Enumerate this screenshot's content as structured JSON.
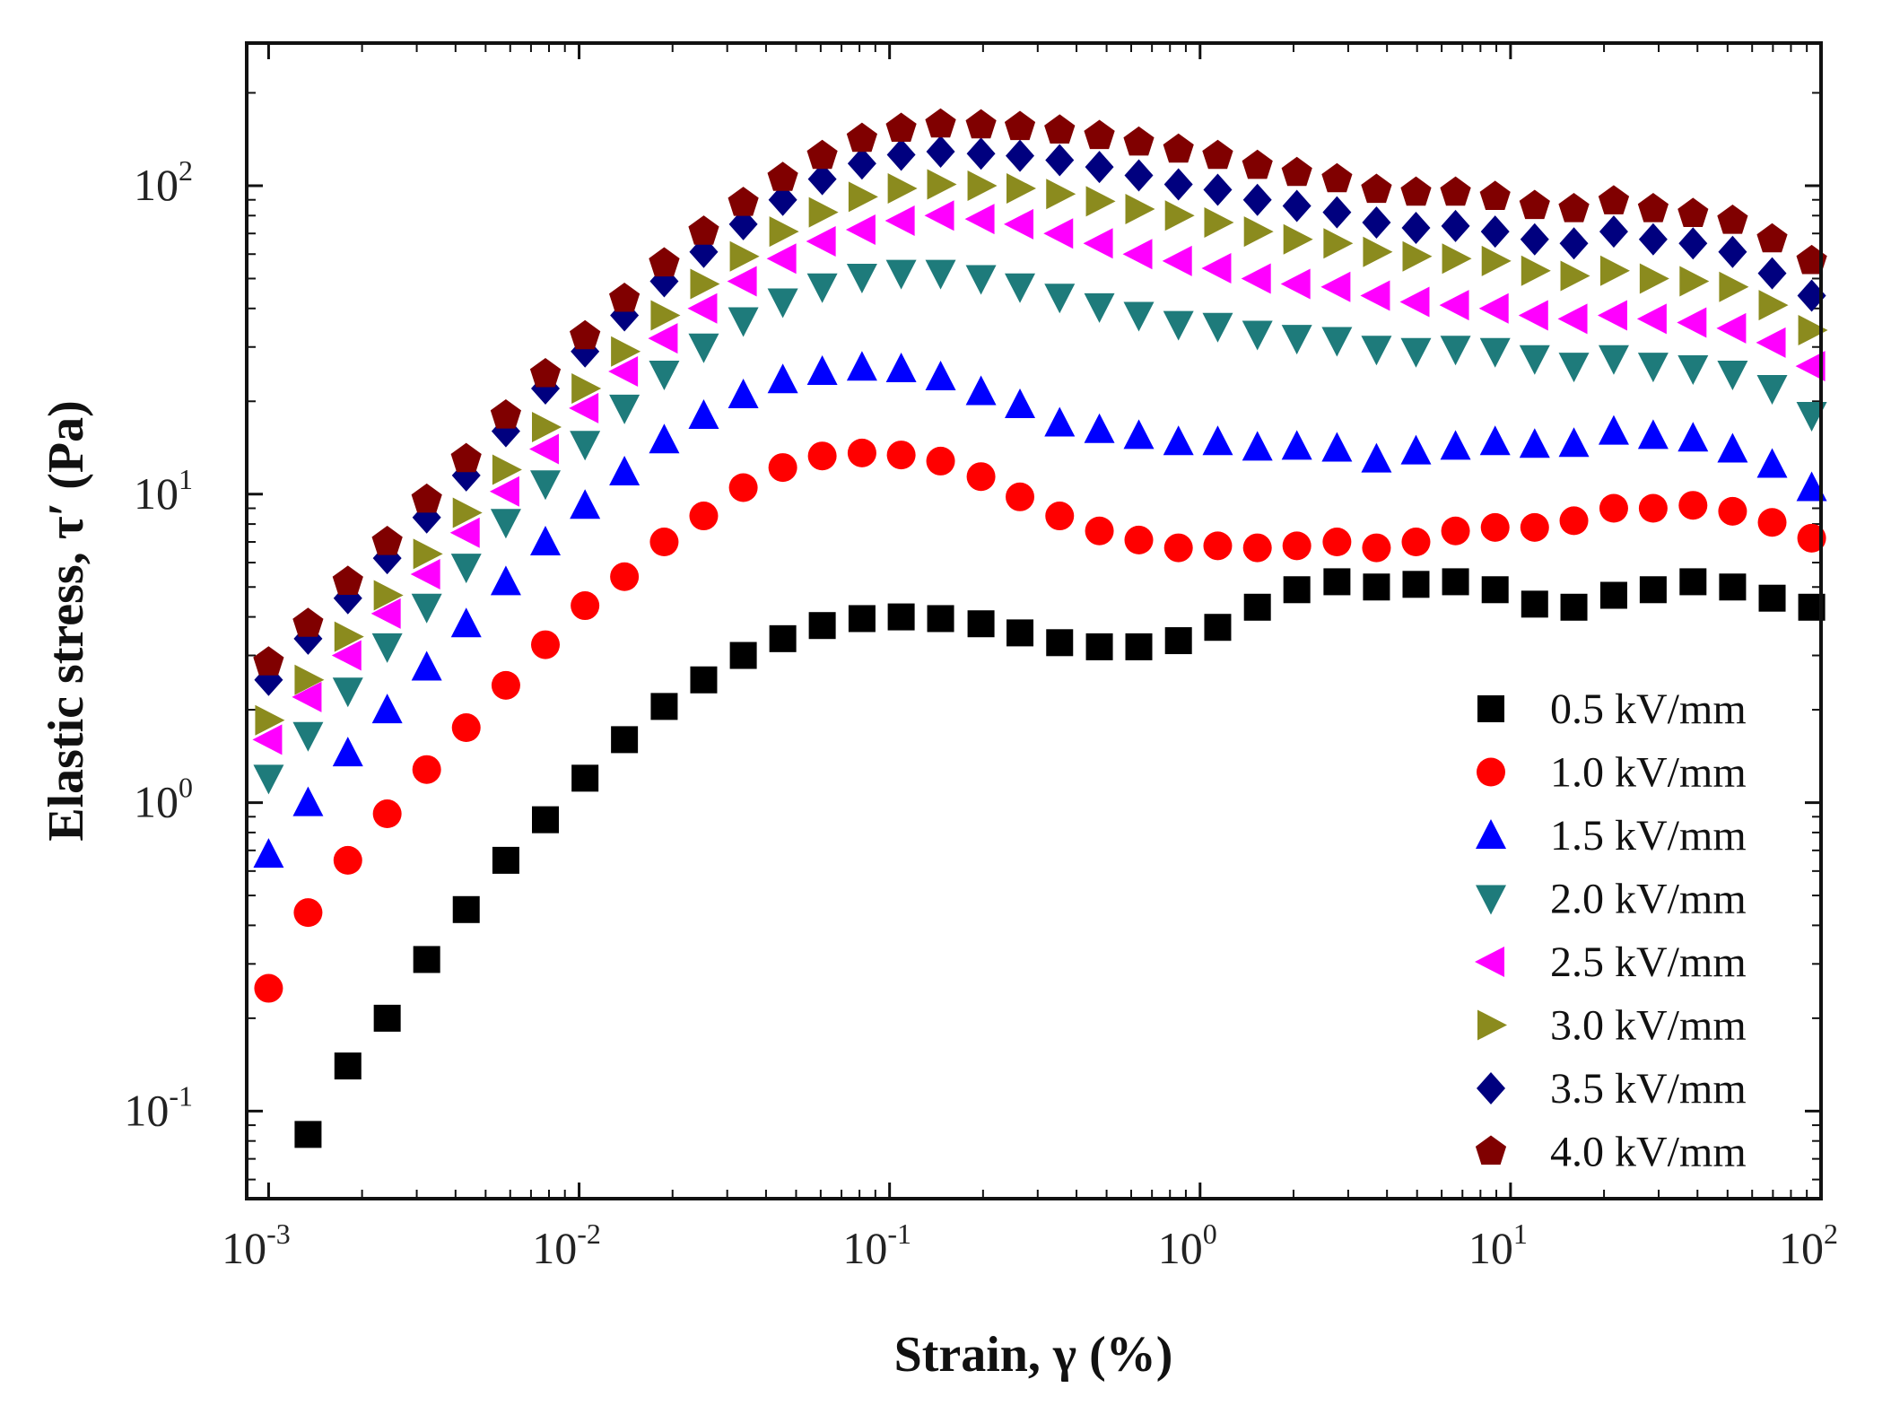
{
  "chart_data": {
    "type": "scatter",
    "title": "",
    "xlabel": "Strain, γ (%)",
    "ylabel": "Elastic stress, τ′ (Pa)",
    "xscale": "log",
    "yscale": "log",
    "xlim": [
      0.00085,
      100
    ],
    "ylim": [
      0.052,
      290
    ],
    "x_ticks": [
      {
        "value": 0.001,
        "base": "10",
        "exp": "-3"
      },
      {
        "value": 0.01,
        "base": "10",
        "exp": "-2"
      },
      {
        "value": 0.1,
        "base": "10",
        "exp": "-1"
      },
      {
        "value": 1,
        "base": "10",
        "exp": "0"
      },
      {
        "value": 10,
        "base": "10",
        "exp": "1"
      },
      {
        "value": 100,
        "base": "10",
        "exp": "2"
      }
    ],
    "y_ticks": [
      {
        "value": 0.1,
        "base": "10",
        "exp": "-1"
      },
      {
        "value": 1,
        "base": "10",
        "exp": "0"
      },
      {
        "value": 10,
        "base": "10",
        "exp": "1"
      },
      {
        "value": 100,
        "base": "10",
        "exp": "2"
      }
    ],
    "legend_position": "bottom-right",
    "x": [
      0.001,
      0.00134,
      0.0018,
      0.00241,
      0.00323,
      0.00433,
      0.00581,
      0.00779,
      0.01045,
      0.014,
      0.0188,
      0.0252,
      0.0338,
      0.0453,
      0.0607,
      0.0815,
      0.109,
      0.146,
      0.197,
      0.263,
      0.353,
      0.474,
      0.635,
      0.852,
      1.14,
      1.53,
      2.05,
      2.76,
      3.7,
      4.96,
      6.65,
      8.92,
      11.96,
      16.0,
      21.5,
      28.8,
      38.7,
      51.9,
      69.6,
      93.3
    ],
    "series": [
      {
        "name": "0.5 kV/mm",
        "marker": "square",
        "color": "#000000",
        "values": [
          null,
          0.084,
          0.14,
          0.2,
          0.31,
          0.45,
          0.65,
          0.88,
          1.2,
          1.6,
          2.05,
          2.5,
          3.0,
          3.4,
          3.75,
          3.95,
          4.0,
          3.95,
          3.8,
          3.55,
          3.3,
          3.2,
          3.2,
          3.35,
          3.7,
          4.3,
          4.9,
          5.2,
          5.0,
          5.1,
          5.2,
          4.9,
          4.4,
          4.3,
          4.7,
          4.9,
          5.2,
          5.0,
          4.6,
          4.3
        ]
      },
      {
        "name": "1.0 kV/mm",
        "marker": "circle",
        "color": "#ff0000",
        "values": [
          0.25,
          0.44,
          0.65,
          0.92,
          1.28,
          1.75,
          2.4,
          3.25,
          4.35,
          5.4,
          7.0,
          8.5,
          10.5,
          12.2,
          13.3,
          13.6,
          13.4,
          12.8,
          11.4,
          9.8,
          8.5,
          7.6,
          7.1,
          6.7,
          6.8,
          6.7,
          6.8,
          7.0,
          6.7,
          7.0,
          7.6,
          7.8,
          7.8,
          8.2,
          9.0,
          9.0,
          9.2,
          8.8,
          8.1,
          7.2
        ]
      },
      {
        "name": "1.5 kV/mm",
        "marker": "triangle-up",
        "color": "#0000ff",
        "values": [
          0.68,
          1.0,
          1.45,
          2.0,
          2.75,
          3.8,
          5.2,
          7.0,
          9.2,
          11.8,
          15.0,
          18.0,
          21.0,
          23.5,
          25.0,
          25.8,
          25.5,
          24.0,
          21.5,
          19.5,
          17.0,
          16.2,
          15.5,
          14.8,
          14.8,
          14.2,
          14.3,
          14.1,
          13.0,
          13.8,
          14.3,
          14.8,
          14.5,
          14.6,
          16.0,
          15.5,
          15.2,
          14.0,
          12.5,
          10.5
        ]
      },
      {
        "name": "2.0 kV/mm",
        "marker": "triangle-down",
        "color": "#1e7b7b",
        "values": [
          1.2,
          1.65,
          2.3,
          3.2,
          4.3,
          5.8,
          8.1,
          10.8,
          14.5,
          19.0,
          24.5,
          30.0,
          36.5,
          42.0,
          47.0,
          50.5,
          52.0,
          52.0,
          50.0,
          47.0,
          43.5,
          40.5,
          38.0,
          35.5,
          35.0,
          33.0,
          32.0,
          31.5,
          29.5,
          29.0,
          29.5,
          29.0,
          27.5,
          26.0,
          27.5,
          26.0,
          25.5,
          24.5,
          22.0,
          18.0
        ]
      },
      {
        "name": "2.5 kV/mm",
        "marker": "triangle-left",
        "color": "#ff00ff",
        "values": [
          1.6,
          2.2,
          3.0,
          4.1,
          5.5,
          7.5,
          10.2,
          14.0,
          19.0,
          25.0,
          32.0,
          40.0,
          49.0,
          58.0,
          66.0,
          72.0,
          77.0,
          80.0,
          78.0,
          75.0,
          70.0,
          65.0,
          60.0,
          57.0,
          54.0,
          50.0,
          48.0,
          47.0,
          44.0,
          42.0,
          41.0,
          40.0,
          38.0,
          37.0,
          38.0,
          37.0,
          36.0,
          34.5,
          31.0,
          26.0
        ]
      },
      {
        "name": "3.0 kV/mm",
        "marker": "triangle-right",
        "color": "#8b8b1e",
        "values": [
          1.85,
          2.5,
          3.45,
          4.7,
          6.4,
          8.7,
          12.0,
          16.5,
          22.0,
          29.0,
          38.0,
          48.0,
          59.0,
          71.0,
          82.0,
          92.0,
          98.0,
          101.0,
          100.0,
          98.0,
          94.0,
          89.0,
          84.0,
          80.0,
          76.0,
          71.0,
          67.0,
          65.0,
          61.0,
          59.0,
          58.0,
          57.0,
          53.0,
          51.0,
          53.0,
          50.0,
          49.0,
          47.0,
          41.0,
          34.0
        ]
      },
      {
        "name": "3.5 kV/mm",
        "marker": "diamond",
        "color": "#00007f",
        "values": [
          2.5,
          3.4,
          4.6,
          6.2,
          8.4,
          11.5,
          16.0,
          22.0,
          29.0,
          38.0,
          49.0,
          61.0,
          75.0,
          90.0,
          105.0,
          118.0,
          126.0,
          129.0,
          127.0,
          125.0,
          121.0,
          115.0,
          108.0,
          101.0,
          97.0,
          90.0,
          86.0,
          82.0,
          76.0,
          73.0,
          74.0,
          71.0,
          67.0,
          65.0,
          71.0,
          67.0,
          65.0,
          61.0,
          52.0,
          44.0
        ]
      },
      {
        "name": "4.0 kV/mm",
        "marker": "pentagon",
        "color": "#800000",
        "values": [
          2.85,
          3.8,
          5.2,
          7.0,
          9.6,
          13.0,
          18.0,
          24.5,
          32.5,
          43.0,
          56.0,
          71.0,
          88.0,
          106.0,
          125.0,
          142.0,
          153.0,
          158.0,
          157.0,
          155.0,
          151.0,
          145.0,
          138.0,
          131.0,
          125.0,
          116.0,
          110.0,
          105.0,
          97.0,
          95.0,
          95.0,
          92.0,
          86.0,
          84.0,
          89.0,
          84.0,
          81.0,
          77.0,
          67.0,
          57.0
        ]
      }
    ]
  }
}
